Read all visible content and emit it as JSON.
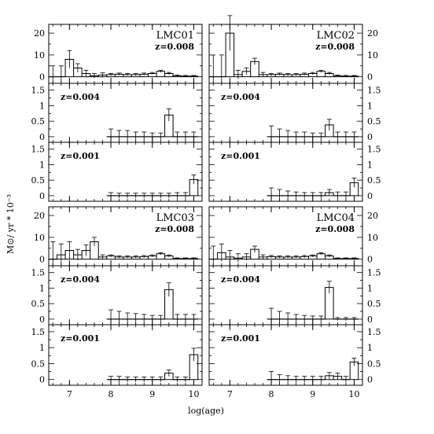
{
  "figure": {
    "xlabel": "log(age)",
    "ylabel": "M⊙/ yr * 10⁻³"
  },
  "chart_data": [
    {
      "type": "bar",
      "panel": "LMC01 z=0.008",
      "name": "LMC01",
      "z_label": "z=0.008",
      "x": [
        6.6,
        6.8,
        7.0,
        7.2,
        7.4,
        7.6,
        7.8,
        8.0,
        8.2,
        8.4,
        8.6,
        8.8,
        9.0,
        9.2,
        9.4,
        9.6,
        9.8,
        10.0
      ],
      "values": [
        0,
        0,
        8,
        4,
        1.5,
        0.5,
        0.8,
        1,
        1.2,
        1,
        1,
        1.2,
        1.5,
        2.5,
        1.5,
        0.5,
        0.3,
        0.3
      ],
      "errors": [
        5,
        5,
        4,
        2,
        1.5,
        1,
        1,
        0.5,
        0.5,
        0.5,
        0.5,
        0.5,
        0.5,
        0.5,
        0.5,
        0.3,
        0.3,
        0.3
      ],
      "xlim": [
        6.5,
        10.2
      ],
      "ylim": [
        -3,
        24
      ],
      "yticks": [
        0,
        10,
        20
      ],
      "xticks": [
        7,
        8,
        9,
        10
      ]
    },
    {
      "type": "bar",
      "panel": "LMC02 z=0.008",
      "name": "LMC02",
      "z_label": "z=0.008",
      "x": [
        6.6,
        6.8,
        7.0,
        7.2,
        7.4,
        7.6,
        7.8,
        8.0,
        8.2,
        8.4,
        8.6,
        8.8,
        9.0,
        9.2,
        9.4,
        9.6,
        9.8,
        10.0
      ],
      "values": [
        0,
        0,
        20,
        1,
        2.5,
        7,
        1,
        1,
        1.2,
        1,
        1,
        1.2,
        1.5,
        2.5,
        1.5,
        0.5,
        0.3,
        0.3
      ],
      "errors": [
        10,
        10,
        8,
        2,
        1.5,
        1.5,
        1,
        0.5,
        0.5,
        0.5,
        0.5,
        0.5,
        0.5,
        0.5,
        0.5,
        0.3,
        0.3,
        0.3
      ],
      "xlim": [
        6.5,
        10.2
      ],
      "ylim": [
        -3,
        24
      ],
      "yticks": [
        0,
        10,
        20
      ],
      "xticks": [
        7,
        8,
        9,
        10
      ]
    },
    {
      "type": "bar",
      "panel": "LMC01 z=0.004",
      "z_label": "z=0.004",
      "x": [
        8.0,
        8.2,
        8.4,
        8.6,
        8.8,
        9.0,
        9.2,
        9.4,
        9.6,
        9.8,
        10.0
      ],
      "values": [
        0,
        0,
        0,
        0,
        0,
        0,
        0,
        0.7,
        0,
        0,
        0
      ],
      "errors": [
        0.25,
        0.2,
        0.2,
        0.15,
        0.15,
        0.12,
        0.12,
        0.2,
        0.15,
        0.15,
        0.15
      ],
      "xlim": [
        6.5,
        10.2
      ],
      "ylim": [
        -0.18,
        1.72
      ],
      "yticks": [
        0,
        0.5,
        1,
        1.5
      ],
      "xticks": [
        7,
        8,
        9,
        10
      ]
    },
    {
      "type": "bar",
      "panel": "LMC02 z=0.004",
      "z_label": "z=0.004",
      "x": [
        8.0,
        8.2,
        8.4,
        8.6,
        8.8,
        9.0,
        9.2,
        9.4,
        9.6,
        9.8,
        10.0
      ],
      "values": [
        0,
        0,
        0,
        0,
        0,
        0,
        0,
        0.38,
        0,
        0,
        0
      ],
      "errors": [
        0.35,
        0.25,
        0.2,
        0.15,
        0.15,
        0.12,
        0.12,
        0.18,
        0.15,
        0.15,
        0.15
      ],
      "xlim": [
        6.5,
        10.2
      ],
      "ylim": [
        -0.18,
        1.72
      ],
      "yticks": [
        0,
        0.5,
        1,
        1.5
      ],
      "xticks": [
        7,
        8,
        9,
        10
      ]
    },
    {
      "type": "bar",
      "panel": "LMC01 z=0.001",
      "z_label": "z=0.001",
      "x": [
        8.0,
        8.2,
        8.4,
        8.6,
        8.8,
        9.0,
        9.2,
        9.4,
        9.6,
        9.8,
        10.0
      ],
      "values": [
        0,
        0,
        0,
        0,
        0,
        0,
        0,
        0,
        0,
        0,
        0.52
      ],
      "errors": [
        0.1,
        0.08,
        0.08,
        0.08,
        0.08,
        0.08,
        0.08,
        0.08,
        0.1,
        0.1,
        0.15
      ],
      "xlim": [
        6.5,
        10.2
      ],
      "ylim": [
        -0.18,
        1.72
      ],
      "yticks": [
        0,
        0.5,
        1,
        1.5
      ],
      "xticks": [
        7,
        8,
        9,
        10
      ]
    },
    {
      "type": "bar",
      "panel": "LMC02 z=0.001",
      "z_label": "z=0.001",
      "x": [
        8.0,
        8.2,
        8.4,
        8.6,
        8.8,
        9.0,
        9.2,
        9.4,
        9.6,
        9.8,
        10.0
      ],
      "values": [
        0,
        0,
        0,
        0,
        0,
        0,
        0,
        0.1,
        0,
        0,
        0.42
      ],
      "errors": [
        0.25,
        0.2,
        0.15,
        0.12,
        0.1,
        0.1,
        0.1,
        0.1,
        0.12,
        0.12,
        0.15
      ],
      "xlim": [
        6.5,
        10.2
      ],
      "ylim": [
        -0.18,
        1.72
      ],
      "yticks": [
        0,
        0.5,
        1,
        1.5
      ],
      "xticks": [
        7,
        8,
        9,
        10
      ]
    },
    {
      "type": "bar",
      "panel": "LMC03 z=0.008",
      "name": "LMC03",
      "z_label": "z=0.008",
      "x": [
        6.6,
        6.8,
        7.0,
        7.2,
        7.4,
        7.6,
        7.8,
        8.0,
        8.2,
        8.4,
        8.6,
        8.8,
        9.0,
        9.2,
        9.4,
        9.6,
        9.8,
        10.0
      ],
      "values": [
        0,
        2,
        4,
        2,
        4,
        8,
        1,
        1.5,
        1,
        1,
        1,
        1.2,
        1.5,
        2.5,
        1.5,
        0.3,
        0.3,
        0.3
      ],
      "errors": [
        8,
        5,
        4,
        2.5,
        2.5,
        2,
        1,
        0.5,
        0.5,
        0.5,
        0.5,
        0.5,
        0.5,
        0.5,
        0.5,
        0.3,
        0.3,
        0.3
      ],
      "xlim": [
        6.5,
        10.2
      ],
      "ylim": [
        -3,
        24
      ],
      "yticks": [
        0,
        10,
        20
      ],
      "xticks": [
        7,
        8,
        9,
        10
      ]
    },
    {
      "type": "bar",
      "panel": "LMC04 z=0.008",
      "name": "LMC04",
      "z_label": "z=0.008",
      "x": [
        6.6,
        6.8,
        7.0,
        7.2,
        7.4,
        7.6,
        7.8,
        8.0,
        8.2,
        8.4,
        8.6,
        8.8,
        9.0,
        9.2,
        9.4,
        9.6,
        9.8,
        10.0
      ],
      "values": [
        0,
        3,
        1,
        0.5,
        1,
        4.5,
        1,
        1.2,
        1,
        1,
        1,
        1.2,
        1.5,
        2.5,
        1.5,
        0.3,
        0.3,
        0.3
      ],
      "errors": [
        6,
        4,
        3,
        2,
        1.5,
        1.5,
        1,
        0.5,
        0.5,
        0.5,
        0.5,
        0.5,
        0.5,
        0.5,
        0.5,
        0.3,
        0.3,
        0.3
      ],
      "xlim": [
        6.5,
        10.2
      ],
      "ylim": [
        -3,
        24
      ],
      "yticks": [
        0,
        10,
        20
      ],
      "xticks": [
        7,
        8,
        9,
        10
      ]
    },
    {
      "type": "bar",
      "panel": "LMC03 z=0.004",
      "z_label": "z=0.004",
      "x": [
        8.0,
        8.2,
        8.4,
        8.6,
        8.8,
        9.0,
        9.2,
        9.4,
        9.6,
        9.8,
        10.0
      ],
      "values": [
        0,
        0,
        0,
        0,
        0,
        0,
        0,
        0.95,
        0,
        0,
        0
      ],
      "errors": [
        0.3,
        0.25,
        0.2,
        0.18,
        0.15,
        0.12,
        0.12,
        0.22,
        0.15,
        0.15,
        0.15
      ],
      "xlim": [
        6.5,
        10.2
      ],
      "ylim": [
        -0.18,
        1.72
      ],
      "yticks": [
        0,
        0.5,
        1,
        1.5
      ],
      "xticks": [
        7,
        8,
        9,
        10
      ]
    },
    {
      "type": "bar",
      "panel": "LMC04 z=0.004",
      "z_label": "z=0.004",
      "x": [
        8.0,
        8.2,
        8.4,
        8.6,
        8.8,
        9.0,
        9.2,
        9.4,
        9.6,
        9.8,
        10.0
      ],
      "values": [
        0,
        0,
        0,
        0,
        0,
        0,
        0,
        1.02,
        0,
        0,
        0
      ],
      "errors": [
        0.35,
        0.25,
        0.2,
        0.15,
        0.12,
        0.1,
        0.1,
        0.2,
        0.05,
        0.05,
        0.05
      ],
      "xlim": [
        6.5,
        10.2
      ],
      "ylim": [
        -0.18,
        1.72
      ],
      "yticks": [
        0,
        0.5,
        1,
        1.5
      ],
      "xticks": [
        7,
        8,
        9,
        10
      ]
    },
    {
      "type": "bar",
      "panel": "LMC03 z=0.001",
      "z_label": "z=0.001",
      "x": [
        8.0,
        8.2,
        8.4,
        8.6,
        8.8,
        9.0,
        9.2,
        9.4,
        9.6,
        9.8,
        10.0
      ],
      "values": [
        0,
        0,
        0,
        0,
        0,
        0,
        0,
        0.2,
        0,
        0,
        0.78
      ],
      "errors": [
        0.1,
        0.1,
        0.08,
        0.08,
        0.08,
        0.08,
        0.08,
        0.1,
        0.08,
        0.08,
        0.2
      ],
      "xlim": [
        6.5,
        10.2
      ],
      "ylim": [
        -0.18,
        1.72
      ],
      "yticks": [
        0,
        0.5,
        1,
        1.5
      ],
      "xticks": [
        7,
        8,
        9,
        10
      ]
    },
    {
      "type": "bar",
      "panel": "LMC04 z=0.001",
      "z_label": "z=0.001",
      "x": [
        8.0,
        8.2,
        8.4,
        8.6,
        8.8,
        9.0,
        9.2,
        9.4,
        9.6,
        9.8,
        10.0
      ],
      "values": [
        0,
        0,
        0,
        0,
        0,
        0,
        0,
        0.12,
        0.1,
        0,
        0.55
      ],
      "errors": [
        0.25,
        0.15,
        0.12,
        0.1,
        0.1,
        0.1,
        0.1,
        0.1,
        0.1,
        0.1,
        0.12
      ],
      "xlim": [
        6.5,
        10.2
      ],
      "ylim": [
        -0.18,
        1.72
      ],
      "yticks": [
        0,
        0.5,
        1,
        1.5
      ],
      "xticks": [
        7,
        8,
        9,
        10
      ]
    }
  ]
}
